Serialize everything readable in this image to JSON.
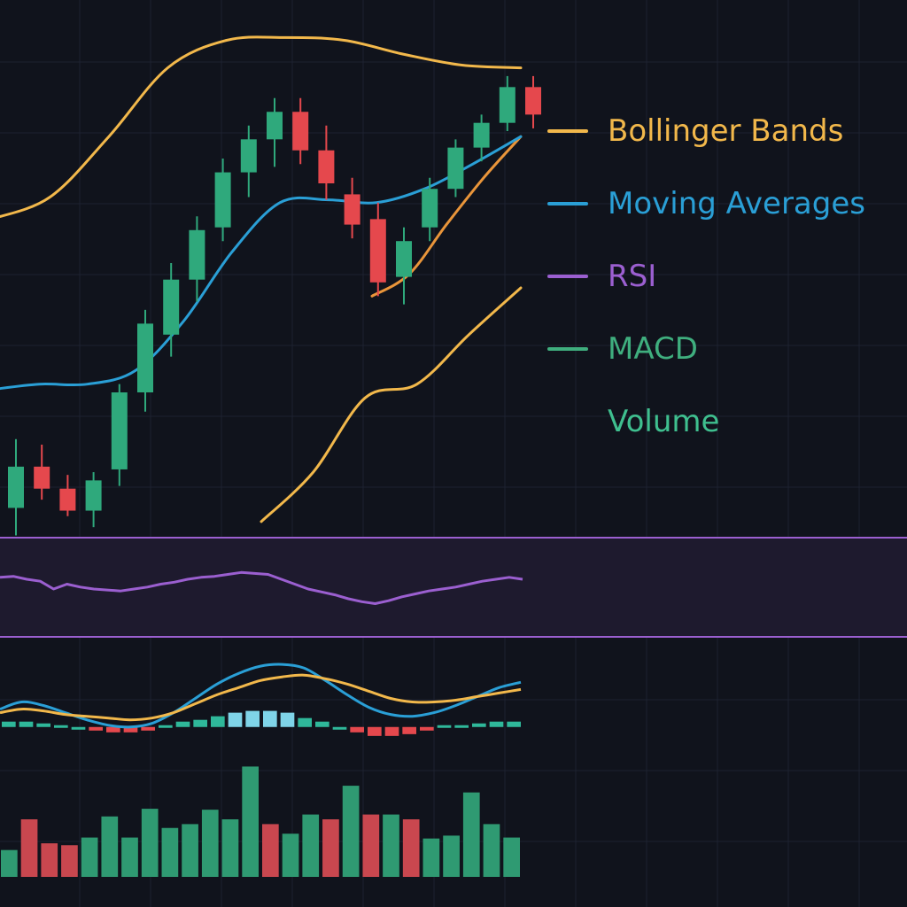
{
  "colors": {
    "background": "#10131c",
    "grid": "#1d2230",
    "up": "#2fa97c",
    "down": "#e5484d",
    "bollinger": "#f2b84b",
    "moving_average": "#2a9fd6",
    "rsi": "#9b5fd0",
    "rsi_band_fill": "#1e1a2e",
    "macd_line": "#2a9fd6",
    "signal_line": "#f2b84b",
    "hist_up": "#2fb89a",
    "hist_up_light": "#7fd4e8",
    "hist_down": "#e5484d",
    "vol_up": "#2f9a72",
    "vol_down": "#c9474f"
  },
  "legend": [
    {
      "label": "Bollinger Bands",
      "color": "#f2b84b",
      "swatch": true
    },
    {
      "label": "Moving Averages",
      "color": "#2a9fd6",
      "swatch": true
    },
    {
      "label": "RSI",
      "color": "#9b5fd0",
      "swatch": true
    },
    {
      "label": "MACD",
      "color": "#3fae7e",
      "swatch": true
    },
    {
      "label": "Volume",
      "color": "#3fbf8f",
      "swatch": false
    }
  ],
  "chart_data": {
    "type": "candlestick",
    "title": "",
    "candles": [
      {
        "open": 15,
        "high": 40,
        "low": 5,
        "close": 30
      },
      {
        "open": 30,
        "high": 38,
        "low": 18,
        "close": 22
      },
      {
        "open": 22,
        "high": 27,
        "low": 12,
        "close": 14
      },
      {
        "open": 14,
        "high": 28,
        "low": 8,
        "close": 25
      },
      {
        "open": 29,
        "high": 60,
        "low": 23,
        "close": 57
      },
      {
        "open": 57,
        "high": 87,
        "low": 50,
        "close": 82
      },
      {
        "open": 78,
        "high": 104,
        "low": 70,
        "close": 98
      },
      {
        "open": 98,
        "high": 121,
        "low": 90,
        "close": 116
      },
      {
        "open": 117,
        "high": 142,
        "low": 112,
        "close": 137
      },
      {
        "open": 137,
        "high": 154,
        "low": 128,
        "close": 149
      },
      {
        "open": 149,
        "high": 164,
        "low": 139,
        "close": 159
      },
      {
        "open": 159,
        "high": 164,
        "low": 140,
        "close": 145
      },
      {
        "open": 145,
        "high": 154,
        "low": 127,
        "close": 133
      },
      {
        "open": 129,
        "high": 135,
        "low": 113,
        "close": 118
      },
      {
        "open": 120,
        "high": 126,
        "low": 92,
        "close": 97
      },
      {
        "open": 99,
        "high": 117,
        "low": 89,
        "close": 112
      },
      {
        "open": 117,
        "high": 135,
        "low": 112,
        "close": 131
      },
      {
        "open": 131,
        "high": 149,
        "low": 128,
        "close": 146
      },
      {
        "open": 146,
        "high": 158,
        "low": 141,
        "close": 155
      },
      {
        "open": 155,
        "high": 172,
        "low": 152,
        "close": 168
      },
      {
        "open": 168,
        "high": 172,
        "low": 153,
        "close": 158
      }
    ],
    "ylim": [
      0,
      190
    ],
    "bollinger_upper": [
      120,
      128,
      150,
      175,
      185,
      186,
      185,
      180,
      176,
      175
    ],
    "bollinger_lower": [
      10,
      28,
      55,
      60,
      78,
      95
    ],
    "moving_average": [
      58,
      60,
      60,
      65,
      83,
      108,
      126,
      127,
      126,
      131,
      140,
      150
    ],
    "rsi": [
      62,
      63,
      60,
      58,
      50,
      55,
      52,
      50,
      49,
      48,
      50,
      52,
      55,
      57,
      60,
      62,
      63,
      65,
      67,
      66,
      65,
      60,
      55,
      50,
      47,
      44,
      40,
      37,
      35,
      38,
      42,
      45,
      48,
      50,
      52,
      55,
      58,
      60,
      62,
      60
    ],
    "rsi_ylim": [
      0,
      100
    ],
    "macd": [
      10,
      14,
      12,
      8,
      4,
      1,
      0,
      2,
      8,
      16,
      24,
      30,
      34,
      35,
      33,
      26,
      18,
      11,
      7,
      6,
      8,
      12,
      17,
      22,
      25
    ],
    "signal": [
      8,
      10,
      9,
      7,
      6,
      5,
      4,
      5,
      8,
      13,
      18,
      22,
      26,
      28,
      29,
      27,
      24,
      20,
      16,
      14,
      14,
      15,
      17,
      19,
      21
    ],
    "macd_ylim": [
      -12,
      40
    ],
    "histogram": [
      3,
      3,
      2,
      1,
      0,
      -2,
      -3,
      -3,
      -2,
      1,
      3,
      4,
      6,
      8,
      9,
      9,
      8,
      5,
      3,
      0,
      -3,
      -5,
      -5,
      -4,
      -2,
      1,
      1,
      2,
      3,
      3
    ],
    "volume": [
      28,
      60,
      35,
      33,
      41,
      63,
      41,
      71,
      51,
      55,
      70,
      60,
      115,
      55,
      45,
      65,
      60,
      95,
      65,
      65,
      60,
      40,
      43,
      88,
      55,
      41
    ],
    "volume_ylim": [
      0,
      120
    ]
  }
}
